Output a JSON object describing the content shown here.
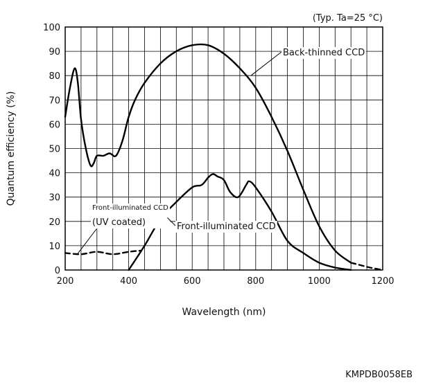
{
  "chart_data": {
    "type": "line",
    "condition": "(Typ. Ta=25 °C)",
    "xlabel": "Wavelength (nm)",
    "ylabel": "Quantum efficiency (%)",
    "xlim": [
      200,
      1200
    ],
    "ylim": [
      0,
      100
    ],
    "xticks": [
      200,
      400,
      600,
      800,
      1000,
      1200
    ],
    "yticks": [
      0,
      10,
      20,
      30,
      40,
      50,
      60,
      70,
      80,
      90,
      100
    ],
    "grid": true,
    "series": [
      {
        "name": "Back-thinned CCD",
        "style": "solid",
        "x": [
          200,
          215,
          230,
          240,
          250,
          265,
          280,
          290,
          300,
          320,
          340,
          360,
          380,
          400,
          420,
          450,
          500,
          550,
          600,
          650,
          700,
          750,
          800,
          850,
          900,
          950,
          1000,
          1050,
          1100
        ],
        "y": [
          63,
          75,
          83,
          77,
          62,
          50,
          43,
          44,
          47,
          47,
          48,
          47,
          53,
          63,
          70,
          77,
          85,
          90,
          92.5,
          92.5,
          89,
          83,
          75,
          63,
          49,
          33,
          18,
          8,
          3
        ]
      },
      {
        "name": "Back-thinned CCD (beyond 1100 nm)",
        "style": "dashed",
        "x": [
          1100,
          1130,
          1160,
          1200
        ],
        "y": [
          3,
          2,
          1,
          0
        ]
      },
      {
        "name": "Front-illuminated CCD (UV coated)",
        "style": "dashed",
        "x": [
          200,
          250,
          300,
          350,
          400,
          440
        ],
        "y": [
          7,
          6.5,
          7.5,
          6.5,
          7.5,
          8
        ]
      },
      {
        "name": "Front-illuminated CCD",
        "style": "solid",
        "x": [
          400,
          450,
          500,
          550,
          600,
          630,
          650,
          665,
          680,
          700,
          720,
          745,
          770,
          780,
          800,
          850,
          900,
          950,
          1000,
          1050,
          1100
        ],
        "y": [
          0,
          10,
          21,
          28,
          34,
          35,
          38,
          39.5,
          38.5,
          37,
          32,
          30,
          35,
          36.5,
          34,
          24,
          12,
          7,
          3,
          1,
          0
        ]
      }
    ],
    "annotations": {
      "back_thinned": "Back-thinned CCD",
      "front_uv_line1": "Front-illuminated CCD",
      "front_uv_line2": "(UV coated)",
      "front": "Front-illuminated CCD"
    }
  },
  "document_code": "KMPDB0058EB"
}
